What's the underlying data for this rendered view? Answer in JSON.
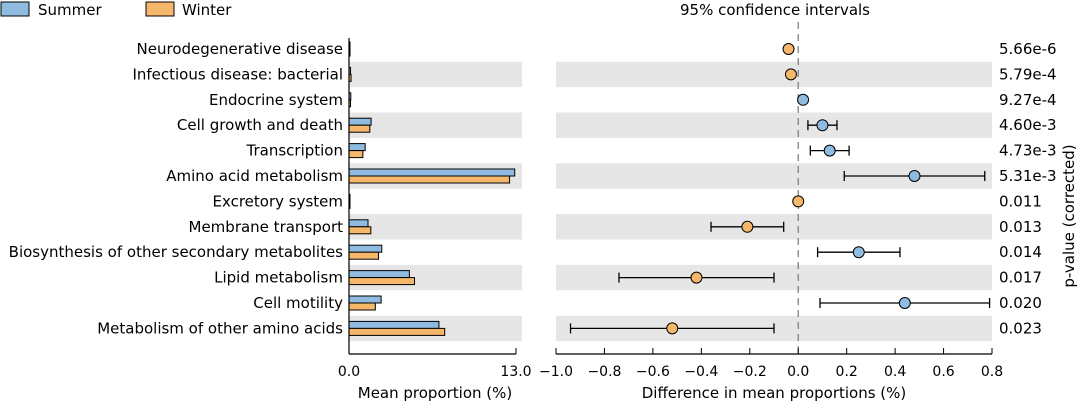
{
  "legend": [
    {
      "name": "Summer",
      "color": "#8fbbe0"
    },
    {
      "name": "Winter",
      "color": "#f5b76a"
    }
  ],
  "colors": {
    "summer": "#8fbbe0",
    "winter": "#f5b76a",
    "band": "#e6e6e6",
    "axis": "#000000"
  },
  "chart_data": [
    {
      "type": "bar",
      "title": "",
      "xlabel": "Mean proportion (%)",
      "xlim": [
        0,
        13.0
      ],
      "xticks": [
        "0.0",
        "13.0"
      ],
      "categories": [
        "Neurodegenerative disease",
        "Infectious disease: bacterial",
        "Endocrine system",
        "Cell growth and death",
        "Transcription",
        "Amino acid metabolism",
        "Excretory system",
        "Membrane transport",
        "Biosynthesis of other secondary metabolites",
        "Lipid metabolism",
        "Cell motility",
        "Metabolism of other amino acids"
      ],
      "series": [
        {
          "name": "Summer",
          "values": [
            0.06,
            0.12,
            0.14,
            1.72,
            1.26,
            12.9,
            0.04,
            1.48,
            2.55,
            4.7,
            2.5,
            7.0
          ]
        },
        {
          "name": "Winter",
          "values": [
            0.08,
            0.16,
            0.12,
            1.62,
            1.08,
            12.5,
            0.04,
            1.7,
            2.3,
            5.1,
            2.05,
            7.45
          ]
        }
      ]
    },
    {
      "type": "scatter",
      "title": "95% confidence intervals",
      "xlabel": "Difference in mean proportions (%)",
      "ylabel": "p-value (corrected)",
      "xlim": [
        -1.0,
        0.8
      ],
      "xticks": [
        "−1.0",
        "−0.8",
        "−0.6",
        "−0.4",
        "−0.2",
        "0.0",
        "0.2",
        "0.4",
        "0.6",
        "0.8"
      ],
      "points": [
        {
          "diff": -0.04,
          "low": -0.04,
          "high": -0.04,
          "group": "Winter",
          "p": "5.66e-6"
        },
        {
          "diff": -0.03,
          "low": -0.03,
          "high": -0.03,
          "group": "Winter",
          "p": "5.79e-4"
        },
        {
          "diff": 0.02,
          "low": 0.02,
          "high": 0.02,
          "group": "Summer",
          "p": "9.27e-4"
        },
        {
          "diff": 0.1,
          "low": 0.04,
          "high": 0.16,
          "group": "Summer",
          "p": "4.60e-3"
        },
        {
          "diff": 0.13,
          "low": 0.05,
          "high": 0.21,
          "group": "Summer",
          "p": "4.73e-3"
        },
        {
          "diff": 0.48,
          "low": 0.19,
          "high": 0.77,
          "group": "Summer",
          "p": "5.31e-3"
        },
        {
          "diff": 0.0,
          "low": 0.0,
          "high": 0.0,
          "group": "Winter",
          "p": "0.011"
        },
        {
          "diff": -0.21,
          "low": -0.36,
          "high": -0.06,
          "group": "Winter",
          "p": "0.013"
        },
        {
          "diff": 0.25,
          "low": 0.08,
          "high": 0.42,
          "group": "Summer",
          "p": "0.014"
        },
        {
          "diff": -0.42,
          "low": -0.74,
          "high": -0.1,
          "group": "Winter",
          "p": "0.017"
        },
        {
          "diff": 0.44,
          "low": 0.09,
          "high": 0.79,
          "group": "Summer",
          "p": "0.020"
        },
        {
          "diff": -0.52,
          "low": -0.94,
          "high": -0.1,
          "group": "Winter",
          "p": "0.023"
        }
      ]
    }
  ]
}
